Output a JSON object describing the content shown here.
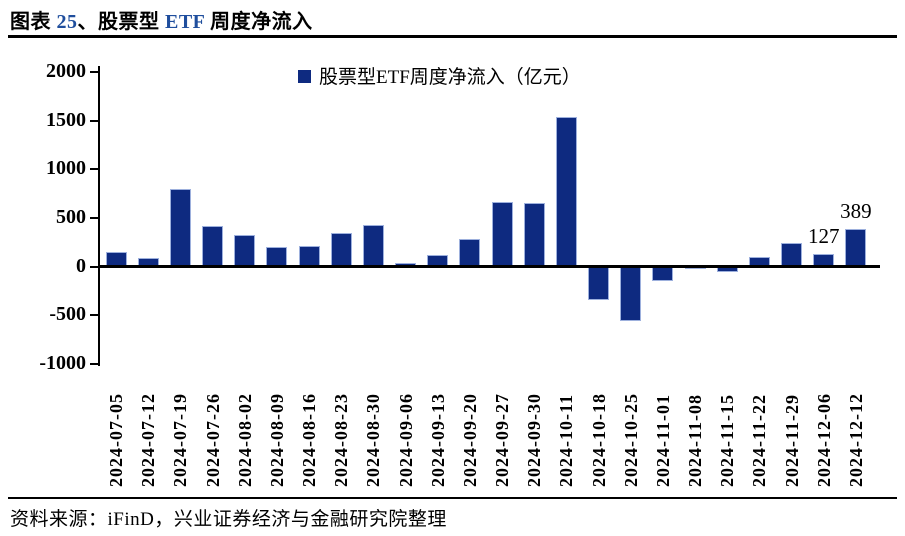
{
  "header": {
    "title_parts": [
      {
        "text": "图表 ",
        "accent": false
      },
      {
        "text": "25",
        "accent": true
      },
      {
        "text": "、股票型 ",
        "accent": false
      },
      {
        "text": "ETF",
        "accent": true
      },
      {
        "text": " 周度净流入",
        "accent": false
      }
    ]
  },
  "legend": {
    "label": "股票型ETF周度净流入（亿元）"
  },
  "footer": {
    "source": "资料来源：iFinD，兴业证券经济与金融研究院整理"
  },
  "colors": {
    "bar_fill": "#0e2a80",
    "bar_border": "#9db0dd",
    "accent_text": "#1f4e9d",
    "axis": "#000000"
  },
  "chart_data": {
    "type": "bar",
    "title": "股票型ETF周度净流入（亿元）",
    "xlabel": "",
    "ylabel": "",
    "ylim": [
      -1000,
      2000
    ],
    "yticks": [
      2000,
      1500,
      1000,
      500,
      0,
      -500,
      -1000
    ],
    "grid": false,
    "legend_position": "top",
    "categories": [
      "2024-07-05",
      "2024-07-12",
      "2024-07-19",
      "2024-07-26",
      "2024-08-02",
      "2024-08-09",
      "2024-08-16",
      "2024-08-23",
      "2024-08-30",
      "2024-09-06",
      "2024-09-13",
      "2024-09-20",
      "2024-09-27",
      "2024-09-30",
      "2024-10-11",
      "2024-10-18",
      "2024-10-25",
      "2024-11-01",
      "2024-11-08",
      "2024-11-15",
      "2024-11-22",
      "2024-11-29",
      "2024-12-06",
      "2024-12-12"
    ],
    "values": [
      150,
      85,
      800,
      420,
      330,
      200,
      215,
      345,
      430,
      40,
      125,
      280,
      660,
      655,
      1540,
      -340,
      -560,
      -150,
      -5,
      -55,
      95,
      240,
      127,
      389
    ],
    "annotations": [
      {
        "category": "2024-12-06",
        "text": "127"
      },
      {
        "category": "2024-12-12",
        "text": "389"
      }
    ]
  }
}
